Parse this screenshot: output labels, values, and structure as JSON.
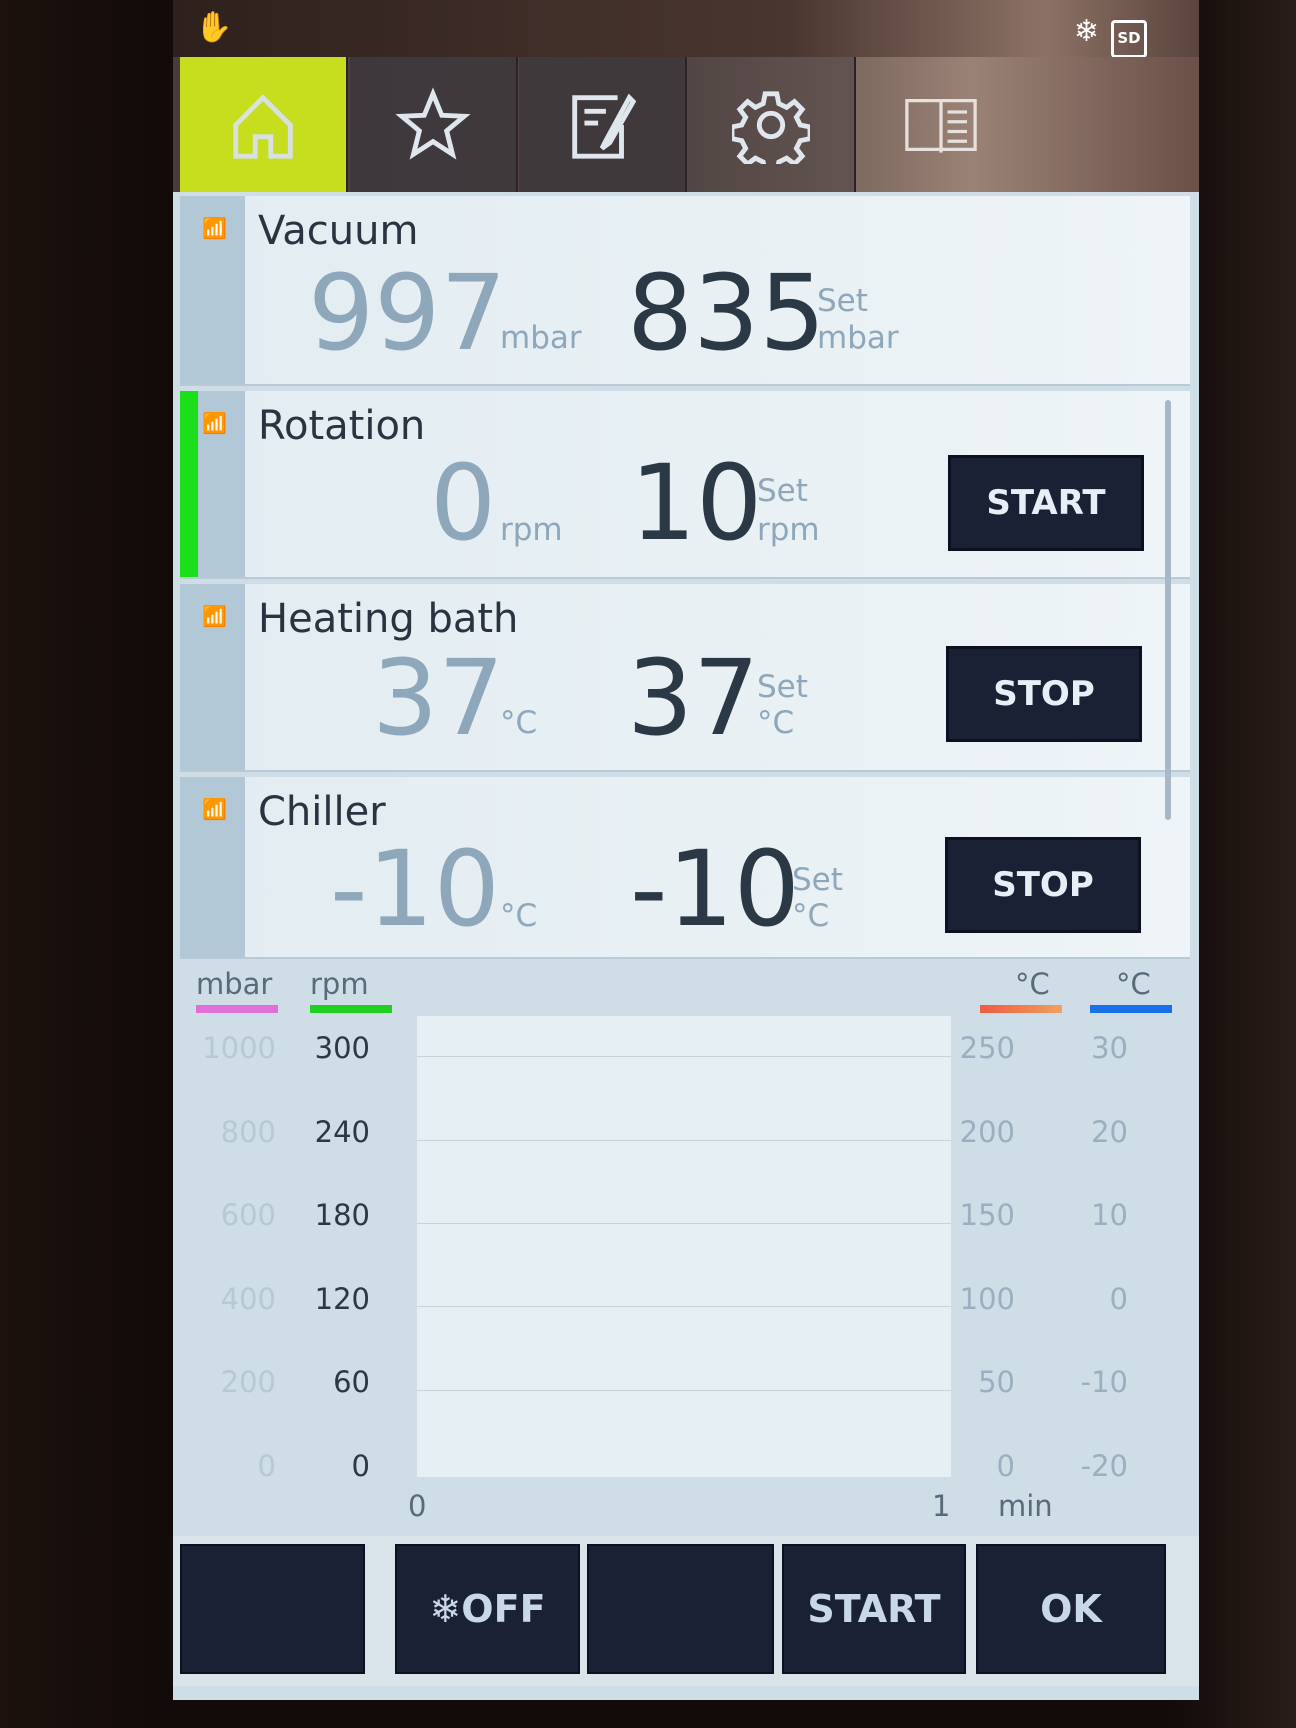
{
  "status": {
    "left_icon": "hand-icon",
    "right_icons": [
      "snowflake-icon",
      "sd-card-icon"
    ],
    "sd_label": "SD"
  },
  "nav_tabs": [
    {
      "icon": "home-icon",
      "active": true
    },
    {
      "icon": "star-icon",
      "active": false
    },
    {
      "icon": "edit-notes-icon",
      "active": false
    },
    {
      "icon": "gear-icon",
      "active": false
    },
    {
      "icon": "book-icon",
      "active": false
    }
  ],
  "panels": {
    "vacuum": {
      "title": "Vacuum",
      "actual": "997",
      "actual_unit": "mbar",
      "set": "835",
      "set_label": "Set",
      "set_unit": "mbar"
    },
    "rotation": {
      "title": "Rotation",
      "actual": "0",
      "actual_unit": "rpm",
      "set": "10",
      "set_label": "Set",
      "set_unit": "rpm",
      "button": "START"
    },
    "heating": {
      "title": "Heating bath",
      "actual": "37",
      "actual_unit": "°C",
      "set": "37",
      "set_label": "Set",
      "set_unit": "°C",
      "button": "STOP"
    },
    "chiller": {
      "title": "Chiller",
      "actual": "-10",
      "actual_unit": "°C",
      "set": "-10",
      "set_label": "Set",
      "set_unit": "°C",
      "button": "STOP"
    }
  },
  "chart": {
    "axes": [
      {
        "unit": "mbar",
        "color": "#e070d8",
        "ticks": [
          "1000",
          "800",
          "600",
          "400",
          "200",
          "0"
        ]
      },
      {
        "unit": "rpm",
        "color": "#20d020",
        "ticks": [
          "300",
          "240",
          "180",
          "120",
          "60",
          "0"
        ]
      },
      {
        "unit": "°C",
        "color": "#f08050",
        "ticks": [
          "250",
          "200",
          "150",
          "100",
          "50",
          "0"
        ]
      },
      {
        "unit": "°C",
        "color": "#1a70e8",
        "ticks": [
          "30",
          "20",
          "10",
          "0",
          "-10",
          "-20"
        ]
      }
    ],
    "x_ticks": [
      "0",
      "1"
    ],
    "x_unit": "min"
  },
  "bottom_buttons": [
    "",
    "❄OFF",
    "",
    "START",
    "OK"
  ]
}
